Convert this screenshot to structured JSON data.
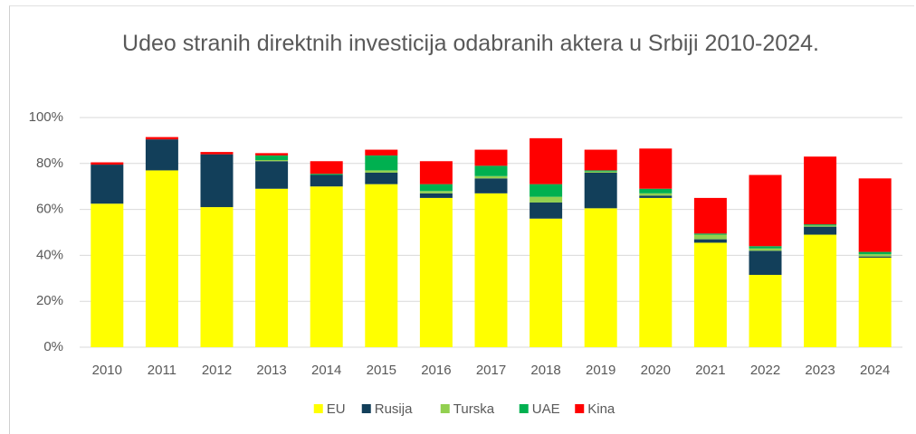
{
  "chart_data": {
    "type": "stacked_bar",
    "title": "Udeo stranih direktnih investicija odabranih aktera u Srbiji 2010-2024.",
    "categories": [
      "2010",
      "2011",
      "2012",
      "2013",
      "2014",
      "2015",
      "2016",
      "2017",
      "2018",
      "2019",
      "2020",
      "2021",
      "2022",
      "2023",
      "2024"
    ],
    "series": [
      {
        "name": "EU",
        "color": "#ffff00",
        "values": [
          62.5,
          77,
          61,
          69,
          70,
          71,
          65,
          67,
          56,
          60.5,
          65,
          45.5,
          31.5,
          49,
          39
        ]
      },
      {
        "name": "Rusija",
        "color": "#123f5a",
        "values": [
          17,
          13.5,
          23,
          12,
          5,
          5,
          2,
          6.5,
          7,
          15.5,
          1,
          1.5,
          10.5,
          3.5,
          0.5
        ]
      },
      {
        "name": "Turska",
        "color": "#92d050",
        "values": [
          0,
          0,
          0,
          0.5,
          0,
          1,
          1,
          1,
          2.5,
          0.5,
          1,
          2,
          1,
          0.5,
          1
        ]
      },
      {
        "name": "UAE",
        "color": "#00b050",
        "values": [
          0,
          0,
          0,
          2,
          0.5,
          6.5,
          3,
          4.5,
          5.5,
          0.5,
          2,
          0.5,
          1,
          0.5,
          1
        ]
      },
      {
        "name": "Kina",
        "color": "#ff0000",
        "values": [
          1,
          1,
          1,
          1,
          5.5,
          2.5,
          10,
          7,
          20,
          9,
          17.5,
          15.5,
          31,
          29.5,
          32
        ]
      }
    ],
    "ylim": [
      0,
      100
    ],
    "yticks": [
      {
        "value": 0,
        "label": "0%"
      },
      {
        "value": 20,
        "label": "20%"
      },
      {
        "value": 40,
        "label": "40%"
      },
      {
        "value": 60,
        "label": "60%"
      },
      {
        "value": 80,
        "label": "80%"
      },
      {
        "value": 100,
        "label": "100%"
      }
    ],
    "grid": true,
    "legend": "bottom"
  }
}
